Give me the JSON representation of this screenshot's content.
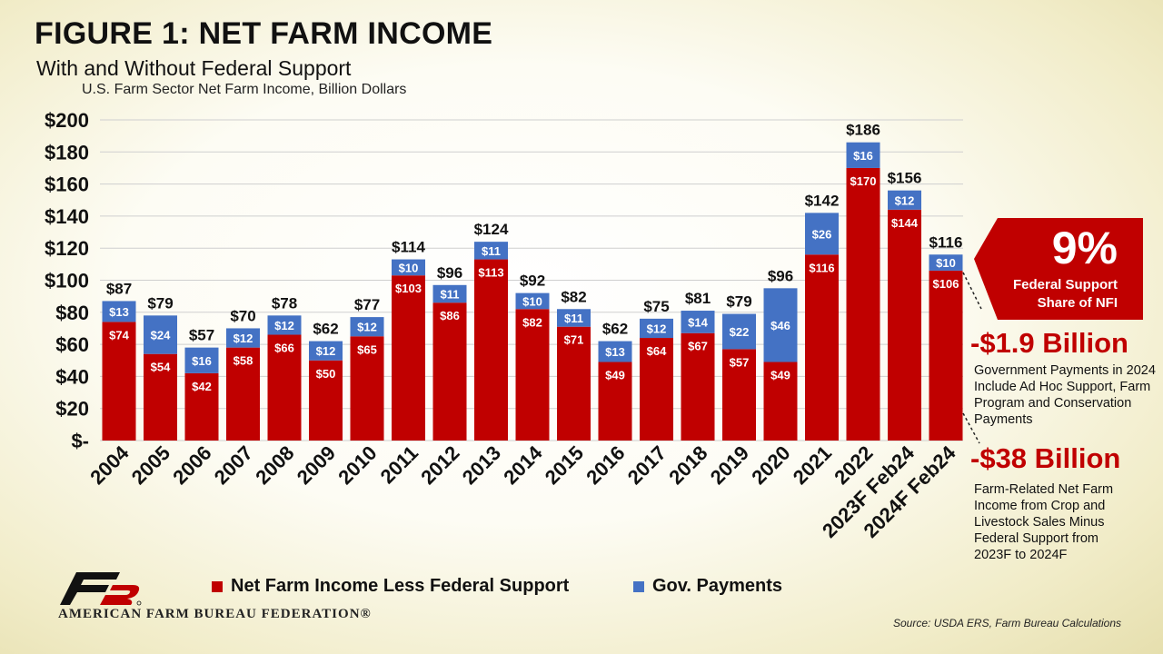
{
  "header": {
    "title": "FIGURE 1: NET FARM INCOME",
    "subtitle": "With and Without Federal Support",
    "subtitle2": "U.S. Farm Sector Net Farm Income, Billion Dollars"
  },
  "chart_data": {
    "type": "bar",
    "stacked": true,
    "categories": [
      "2004",
      "2005",
      "2006",
      "2007",
      "2008",
      "2009",
      "2010",
      "2011",
      "2012",
      "2013",
      "2014",
      "2015",
      "2016",
      "2017",
      "2018",
      "2019",
      "2020",
      "2021",
      "2022",
      "2023F Feb24",
      "2024F Feb24"
    ],
    "series": [
      {
        "name": "Net Farm Income Less Federal Support",
        "color": "#c00000",
        "values": [
          74,
          54,
          42,
          58,
          66,
          50,
          65,
          103,
          86,
          113,
          82,
          71,
          49,
          64,
          67,
          57,
          49,
          116,
          170,
          144,
          106
        ]
      },
      {
        "name": "Gov. Payments",
        "color": "#4472c4",
        "values": [
          13,
          24,
          16,
          12,
          12,
          12,
          12,
          10,
          11,
          11,
          10,
          11,
          13,
          12,
          14,
          22,
          46,
          26,
          16,
          12,
          10
        ]
      }
    ],
    "totals": [
      87,
      79,
      57,
      70,
      78,
      62,
      77,
      114,
      96,
      124,
      92,
      82,
      62,
      75,
      81,
      79,
      96,
      142,
      186,
      156,
      116
    ],
    "ytick_labels": [
      "$-",
      "$20",
      "$40",
      "$60",
      "$80",
      "$100",
      "$120",
      "$140",
      "$160",
      "$180",
      "$200"
    ],
    "ytick_values": [
      0,
      20,
      40,
      60,
      80,
      100,
      120,
      140,
      160,
      180,
      200
    ],
    "ylim": [
      0,
      200
    ],
    "grid": true,
    "legend": "bottom"
  },
  "callouts": {
    "share": {
      "value": "9%",
      "label": "Federal Support Share of NFI"
    },
    "gov": {
      "value": "-$1.9 Billion",
      "text": "Government Payments in 2024 Include Ad Hoc Support, Farm Program and Conservation Payments"
    },
    "farm": {
      "value": "-$38 Billion",
      "text": "Farm-Related Net Farm Income from Crop and Livestock Sales Minus Federal Support from 2023F to 2024F"
    }
  },
  "footer": {
    "org": "AMERICAN FARM BUREAU FEDERATION®",
    "source": "Source: USDA ERS, Farm Bureau Calculations"
  }
}
